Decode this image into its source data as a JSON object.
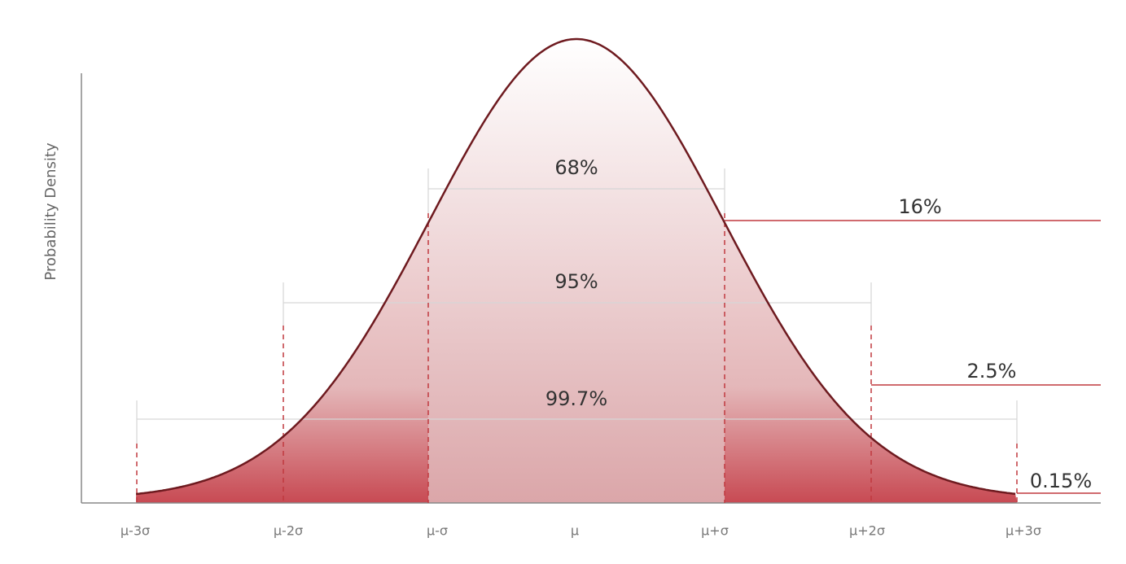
{
  "y_axis_label": "Probability Density",
  "x_labels": [
    "μ-3σ",
    "μ-2σ",
    "μ-σ",
    "μ",
    "μ+σ",
    "μ+2σ",
    "μ+3σ"
  ],
  "intervals": [
    "68%",
    "95%",
    "99.7%"
  ],
  "tails": [
    "16%",
    "2.5%",
    "0.15%"
  ]
}
